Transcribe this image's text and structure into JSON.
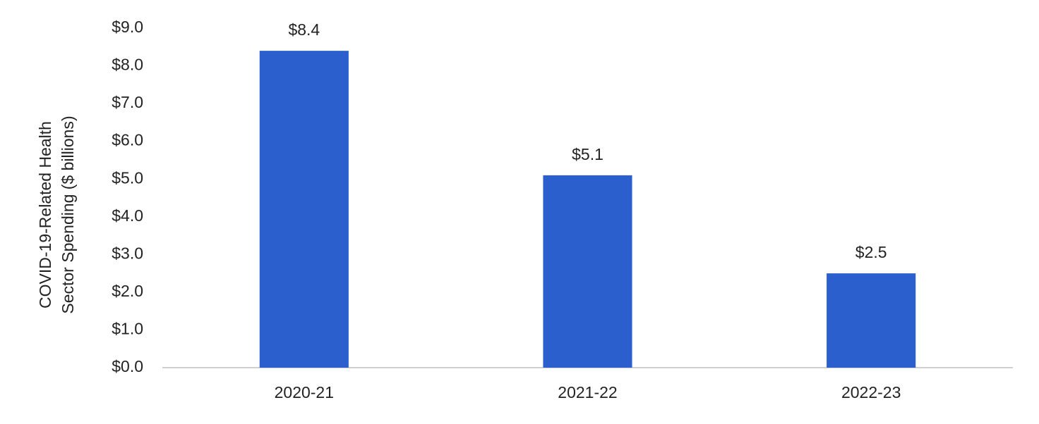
{
  "chart_data": {
    "type": "bar",
    "ylabel": [
      "COVID-19-Related Health",
      "Sector Spending ($ billions)"
    ],
    "categories": [
      "2020-21",
      "2021-22",
      "2022-23"
    ],
    "values": [
      8.4,
      5.1,
      2.5
    ],
    "value_labels": [
      "$8.4",
      "$5.1",
      "$2.5"
    ],
    "color": "#2b5fce",
    "ylim": [
      0,
      9
    ],
    "yticks": [
      {
        "value": 0,
        "label": "$0.0"
      },
      {
        "value": 1,
        "label": "$1.0"
      },
      {
        "value": 2,
        "label": "$2.0"
      },
      {
        "value": 3,
        "label": "$3.0"
      },
      {
        "value": 4,
        "label": "$4.0"
      },
      {
        "value": 5,
        "label": "$5.0"
      },
      {
        "value": 6,
        "label": "$6.0"
      },
      {
        "value": 7,
        "label": "$7.0"
      },
      {
        "value": 8,
        "label": "$8.0"
      },
      {
        "value": 9,
        "label": "$9.0"
      }
    ],
    "grid": false
  }
}
